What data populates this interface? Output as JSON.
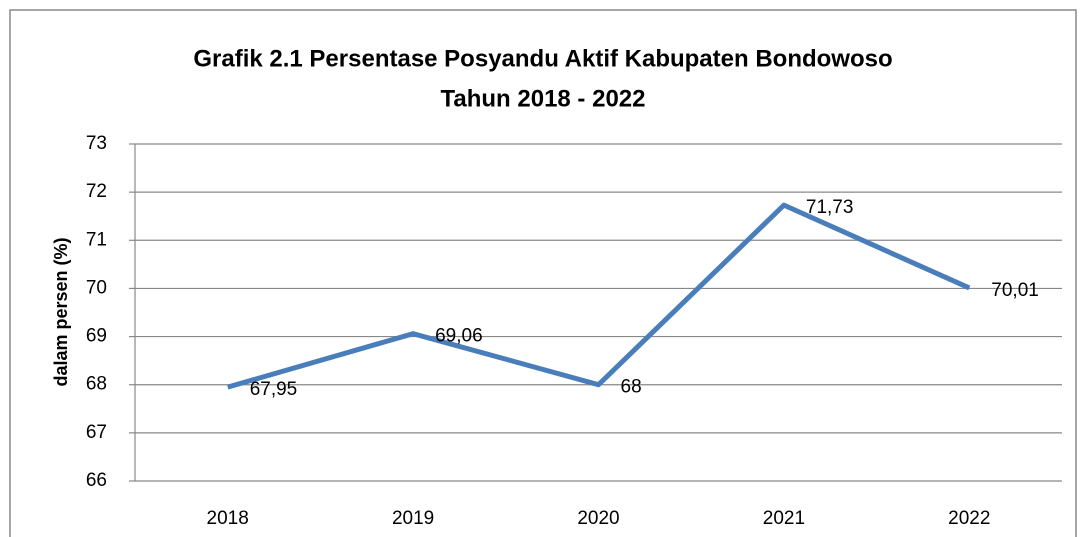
{
  "chart_data": {
    "type": "line",
    "title": [
      "Grafik 2.1 Persentase Posyandu Aktif Kabupaten Bondowoso",
      "Tahun 2018 - 2022"
    ],
    "ylabel": "dalam persen (%)",
    "categories": [
      "2018",
      "2019",
      "2020",
      "2021",
      "2022"
    ],
    "series": [
      {
        "name": "Persentase Posyandu Aktif",
        "color": "#4a7ebb",
        "values": [
          67.95,
          69.06,
          68,
          71.73,
          70.01
        ],
        "value_labels": [
          "67,95",
          "69,06",
          "68",
          "71,73",
          "70,01"
        ]
      }
    ],
    "ylim": [
      66,
      73
    ],
    "yticks": [
      66,
      67,
      68,
      69,
      70,
      71,
      72,
      73
    ],
    "grid": true
  }
}
